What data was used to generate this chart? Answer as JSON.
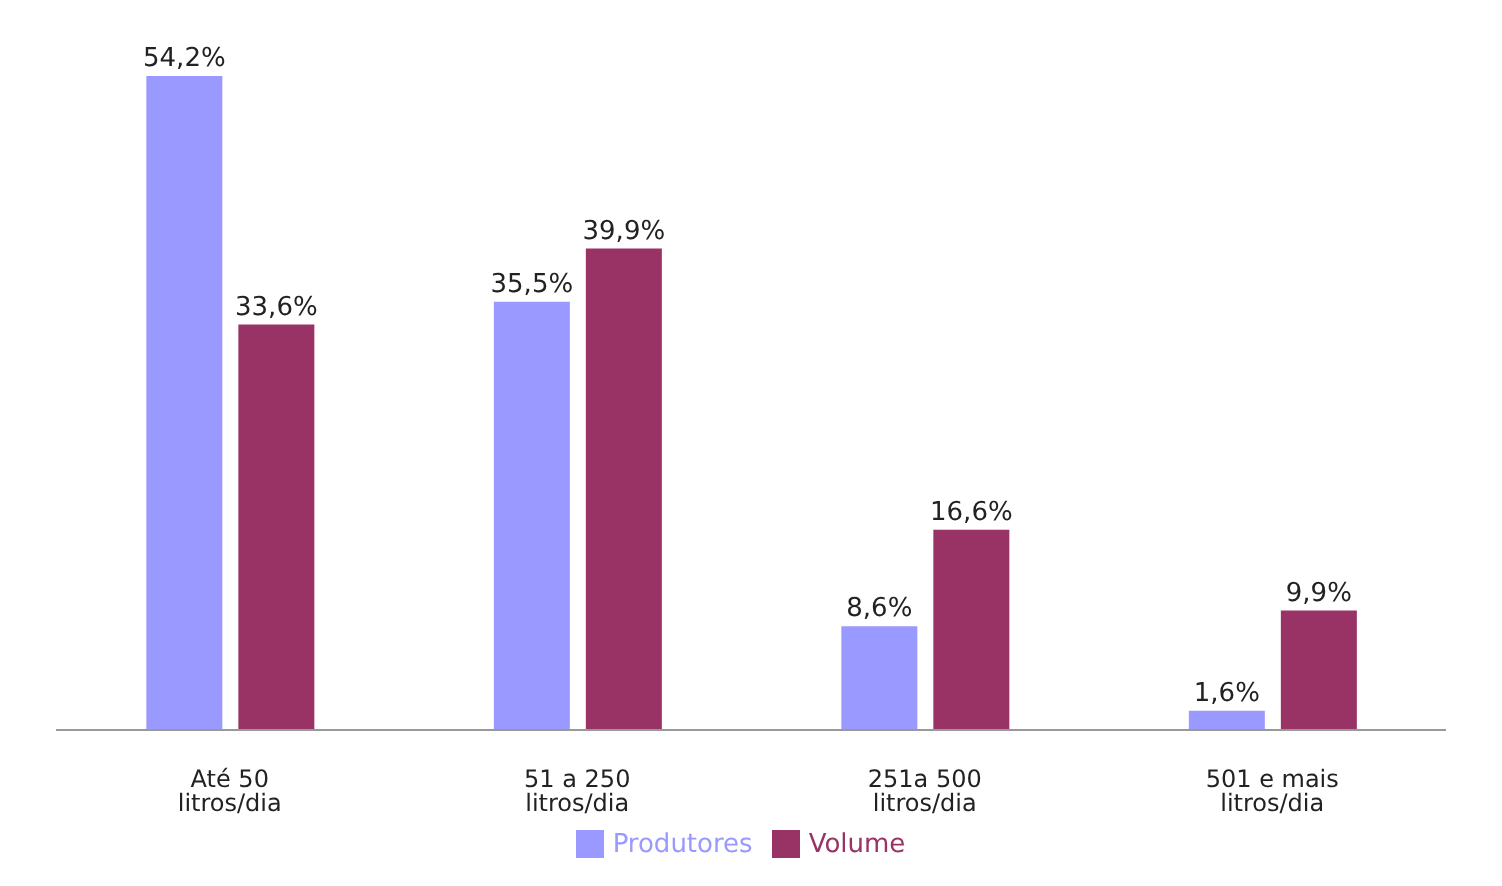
{
  "chart_data": {
    "type": "bar",
    "categories": [
      "Até 50 litros/dia",
      "51 a 250 litros/dia",
      "251a 500 litros/dia",
      "501 e mais litros/dia"
    ],
    "series": [
      {
        "name": "Produtores",
        "color": "#9999ff",
        "values": [
          54.2,
          35.5,
          8.6,
          1.6
        ],
        "value_labels": [
          "54,2%",
          "35,5%",
          "8,6%",
          "1,6%"
        ]
      },
      {
        "name": "Volume",
        "color": "#993366",
        "values": [
          33.6,
          39.9,
          16.6,
          9.9
        ],
        "value_labels": [
          "33,6%",
          "39,9%",
          "16,6%",
          "9,9%"
        ]
      }
    ],
    "legend": "bottom",
    "grid": false
  }
}
